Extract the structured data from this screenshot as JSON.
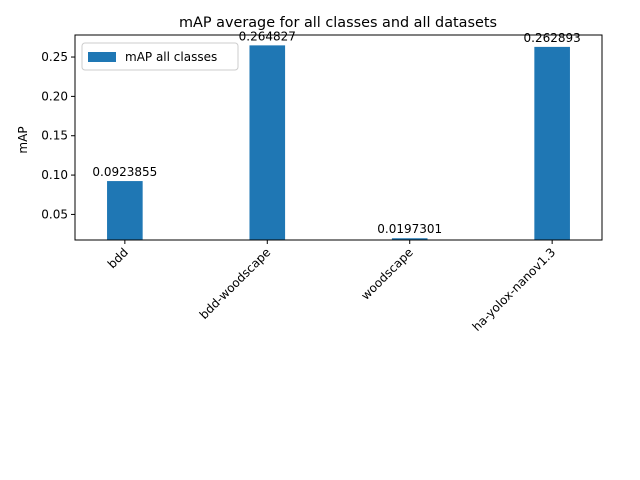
{
  "chart_data": {
    "type": "bar",
    "title": "mAP average for all classes and all datasets",
    "xlabel": "",
    "ylabel": "mAP",
    "categories": [
      "bdd",
      "bdd-woodscape",
      "woodscape",
      "ha-yolox-nanov1.3"
    ],
    "series": [
      {
        "name": "mAP all classes",
        "values": [
          0.0923855,
          0.264827,
          0.0197301,
          0.262893
        ],
        "labels": [
          "0.0923855",
          "0.264827",
          "0.0197301",
          "0.262893"
        ],
        "color": "#1f77b4"
      }
    ],
    "ylim": [
      0.0175,
      0.278
    ],
    "yticks": [
      0.05,
      0.1,
      0.15,
      0.2,
      0.25
    ],
    "ytick_labels": [
      "0.05",
      "0.10",
      "0.15",
      "0.20",
      "0.25"
    ],
    "legend_position": "upper-left",
    "grid": false
  }
}
